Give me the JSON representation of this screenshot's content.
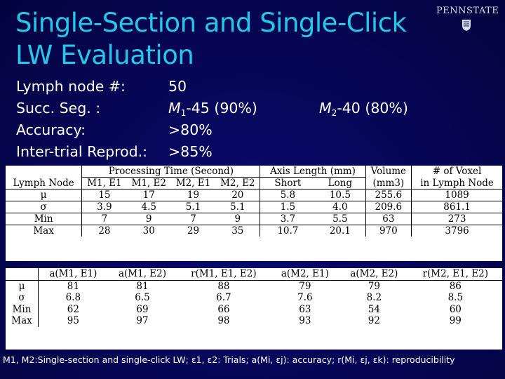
{
  "title": "Single-Section and Single-Click LW Evaluation",
  "logo_text": "PENNSTATE",
  "stats": {
    "lymph_label": "Lymph node #:",
    "lymph_value": "50",
    "seg_label": "Succ. Seg. :",
    "seg_m1": "M",
    "seg_m1_sub": "1",
    "seg_m1_rest": "-45 (90%)",
    "seg_m2": "M",
    "seg_m2_sub": "2",
    "seg_m2_rest": "-40 (80%)",
    "acc_label": "Accuracy:",
    "acc_value": ">80%",
    "rep_label": "Inter-trial Reprod.:",
    "rep_value": ">85%"
  },
  "table1": {
    "group_headers": [
      "Processing Time (Second)",
      "Axis Length (mm)",
      "Volume",
      "# of Voxel"
    ],
    "row_header": "Lymph Node",
    "columns": [
      "M1, E1",
      "M1, E2",
      "M2, E1",
      "M2, E2",
      "Short",
      "Long",
      "(mm3)",
      "in Lymph Node"
    ],
    "rows": [
      {
        "label": "μ",
        "values": [
          "15",
          "17",
          "19",
          "20",
          "5.8",
          "10.5",
          "255.6",
          "1089"
        ]
      },
      {
        "label": "σ",
        "values": [
          "3.9",
          "4.5",
          "5.1",
          "5.1",
          "1.5",
          "4.0",
          "209.6",
          "861.1"
        ]
      },
      {
        "label": "Min",
        "values": [
          "7",
          "9",
          "7",
          "9",
          "3.7",
          "5.5",
          "63",
          "273"
        ]
      },
      {
        "label": "Max",
        "values": [
          "28",
          "30",
          "29",
          "35",
          "10.7",
          "20.1",
          "970",
          "3796"
        ]
      }
    ]
  },
  "table2": {
    "columns": [
      "a(M1, E1)",
      "a(M1, E2)",
      "r(M1, E1, E2)",
      "a(M2, E1)",
      "a(M2, E2)",
      "r(M2, E1, E2)"
    ],
    "rows": [
      {
        "label": "μ",
        "values": [
          "81",
          "81",
          "88",
          "79",
          "79",
          "86"
        ]
      },
      {
        "label": "σ",
        "values": [
          "6.8",
          "6.5",
          "6.7",
          "7.6",
          "8.2",
          "8.5"
        ]
      },
      {
        "label": "Min",
        "values": [
          "62",
          "69",
          "66",
          "63",
          "54",
          "60"
        ]
      },
      {
        "label": "Max",
        "values": [
          "95",
          "97",
          "98",
          "93",
          "92",
          "99"
        ]
      }
    ]
  },
  "caption": "M1, M2:Single-section and single-click LW; ε1, ε2: Trials; a(Mi, εj): accuracy; r(Mi, εj, εk): reproducibility"
}
